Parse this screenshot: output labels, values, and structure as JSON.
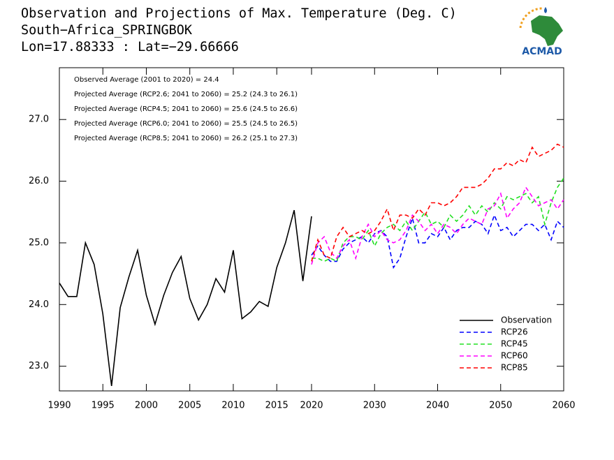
{
  "chart_data": {
    "type": "line",
    "title": "Observation and Projections of Max. Temperature (Deg. C)",
    "subtitle": "South−Africa_SPRINGBOK",
    "location": "Lon=17.88333 : Lat=−29.66666",
    "logo": "ACMAD",
    "annotations": [
      "Observed Average (2001 to 2020) = 24.4",
      "Projected Average (RCP2.6; 2041 to 2060) = 25.2 (24.3 to 26.1)",
      "Projected Average (RCP4.5; 2041 to 2060) = 25.6 (24.5 to 26.6)",
      "Projected Average (RCP6.0; 2041 to 2060) = 25.5 (24.5 to 26.5)",
      "Projected Average (RCP8.5; 2041 to 2060) = 26.2 (25.1 to 27.3)"
    ],
    "xsegments": [
      [
        1990,
        2019
      ],
      [
        2020,
        2060
      ]
    ],
    "xticks": [
      1990,
      1995,
      2000,
      2005,
      2010,
      2015,
      2020,
      2030,
      2040,
      2050,
      2060
    ],
    "ylim": [
      22.6,
      27.84
    ],
    "yticks": [
      {
        "value": 23,
        "label": "23.0"
      },
      {
        "value": 24,
        "label": "24.0"
      },
      {
        "value": 25,
        "label": "25.0"
      },
      {
        "value": 26,
        "label": "26.0"
      },
      {
        "value": 27,
        "label": "27.0"
      }
    ],
    "legend": "lower right",
    "series": [
      {
        "name": "Observation",
        "color": "#000000",
        "dashed": false,
        "x": [
          1990,
          1991,
          1992,
          1993,
          1994,
          1995,
          1996,
          1997,
          1998,
          1999,
          2000,
          2001,
          2002,
          2003,
          2004,
          2005,
          2006,
          2007,
          2008,
          2009,
          2010,
          2011,
          2012,
          2013,
          2014,
          2015,
          2016,
          2017,
          2018,
          2019
        ],
        "values": [
          24.35,
          24.13,
          24.13,
          25.0,
          24.65,
          23.85,
          22.68,
          23.95,
          24.45,
          24.88,
          24.15,
          23.68,
          24.15,
          24.52,
          24.78,
          24.1,
          23.75,
          24.0,
          24.42,
          24.2,
          24.88,
          23.77,
          23.88,
          24.05,
          23.97,
          24.6,
          25.0,
          25.53,
          24.38,
          25.43
        ]
      },
      {
        "name": "RCP26",
        "color": "#0000ff",
        "dashed": true,
        "x": [
          2020,
          2021,
          2022,
          2023,
          2024,
          2025,
          2026,
          2027,
          2028,
          2029,
          2030,
          2031,
          2032,
          2033,
          2034,
          2035,
          2036,
          2037,
          2038,
          2039,
          2040,
          2041,
          2042,
          2043,
          2044,
          2045,
          2046,
          2047,
          2048,
          2049,
          2050,
          2051,
          2052,
          2053,
          2054,
          2055,
          2056,
          2057,
          2058,
          2059,
          2060
        ],
        "values": [
          24.8,
          24.95,
          24.8,
          24.7,
          24.7,
          24.9,
          25.0,
          25.05,
          25.1,
          25.0,
          25.15,
          25.2,
          25.1,
          24.6,
          24.75,
          25.1,
          25.4,
          25.0,
          25.0,
          25.15,
          25.1,
          25.25,
          25.05,
          25.2,
          25.25,
          25.25,
          25.35,
          25.3,
          25.15,
          25.45,
          25.2,
          25.25,
          25.1,
          25.2,
          25.3,
          25.3,
          25.2,
          25.3,
          25.05,
          25.35,
          25.25
        ]
      },
      {
        "name": "RCP45",
        "color": "#22e022",
        "dashed": true,
        "x": [
          2020,
          2021,
          2022,
          2023,
          2024,
          2025,
          2026,
          2027,
          2028,
          2029,
          2030,
          2031,
          2032,
          2033,
          2034,
          2035,
          2036,
          2037,
          2038,
          2039,
          2040,
          2041,
          2042,
          2043,
          2044,
          2045,
          2046,
          2047,
          2048,
          2049,
          2050,
          2051,
          2052,
          2053,
          2054,
          2055,
          2056,
          2057,
          2058,
          2059,
          2060
        ],
        "values": [
          24.75,
          24.75,
          24.7,
          24.75,
          24.7,
          25.0,
          25.1,
          25.1,
          25.05,
          25.2,
          24.95,
          25.15,
          25.25,
          25.3,
          25.2,
          25.35,
          25.2,
          25.35,
          25.5,
          25.3,
          25.35,
          25.25,
          25.45,
          25.35,
          25.45,
          25.6,
          25.45,
          25.6,
          25.5,
          25.65,
          25.55,
          25.75,
          25.7,
          25.75,
          25.8,
          25.65,
          25.75,
          25.3,
          25.65,
          25.9,
          26.05
        ]
      },
      {
        "name": "RCP60",
        "color": "#ff00ff",
        "dashed": true,
        "x": [
          2020,
          2021,
          2022,
          2023,
          2024,
          2025,
          2026,
          2027,
          2028,
          2029,
          2030,
          2031,
          2032,
          2033,
          2034,
          2035,
          2036,
          2037,
          2038,
          2039,
          2040,
          2041,
          2042,
          2043,
          2044,
          2045,
          2046,
          2047,
          2048,
          2049,
          2050,
          2051,
          2052,
          2053,
          2054,
          2055,
          2056,
          2057,
          2058,
          2059,
          2060
        ],
        "values": [
          24.65,
          25.0,
          25.1,
          24.85,
          24.75,
          24.95,
          25.05,
          24.75,
          25.1,
          25.3,
          25.1,
          25.2,
          25.05,
          25.0,
          25.05,
          25.2,
          25.45,
          25.35,
          25.2,
          25.3,
          25.15,
          25.3,
          25.25,
          25.15,
          25.3,
          25.4,
          25.35,
          25.3,
          25.55,
          25.6,
          25.8,
          25.4,
          25.55,
          25.65,
          25.9,
          25.75,
          25.6,
          25.65,
          25.7,
          25.55,
          25.7
        ]
      },
      {
        "name": "RCP85",
        "color": "#ff0000",
        "dashed": true,
        "x": [
          2020,
          2021,
          2022,
          2023,
          2024,
          2025,
          2026,
          2027,
          2028,
          2029,
          2030,
          2031,
          2032,
          2033,
          2034,
          2035,
          2036,
          2037,
          2038,
          2039,
          2040,
          2041,
          2042,
          2043,
          2044,
          2045,
          2046,
          2047,
          2048,
          2049,
          2050,
          2051,
          2052,
          2053,
          2054,
          2055,
          2056,
          2057,
          2058,
          2059,
          2060
        ],
        "values": [
          24.7,
          25.05,
          24.8,
          24.75,
          25.1,
          25.25,
          25.1,
          25.15,
          25.2,
          25.15,
          25.2,
          25.35,
          25.55,
          25.2,
          25.45,
          25.45,
          25.4,
          25.55,
          25.45,
          25.65,
          25.65,
          25.6,
          25.65,
          25.75,
          25.9,
          25.9,
          25.9,
          25.95,
          26.05,
          26.2,
          26.2,
          26.3,
          26.25,
          26.35,
          26.3,
          26.55,
          26.4,
          26.45,
          26.5,
          26.6,
          26.55
        ]
      }
    ]
  }
}
